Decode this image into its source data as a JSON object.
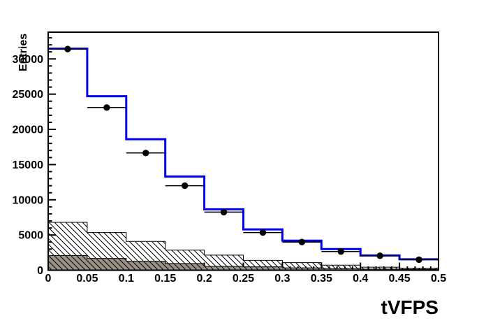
{
  "chart_data": {
    "type": "bar",
    "subtype": "overlaid-step-histograms",
    "title": "tVFPS",
    "xlabel": "tVFPS",
    "ylabel": "Entries",
    "x_range": [
      0,
      0.5
    ],
    "y_range": [
      0,
      33800
    ],
    "bin_width": 0.05,
    "bin_edges": [
      0,
      0.05,
      0.1,
      0.15,
      0.2,
      0.25,
      0.3,
      0.35,
      0.4,
      0.45,
      0.5
    ],
    "grid": false,
    "legend": "none",
    "x_ticks": [
      {
        "value": 0.0,
        "label": "0"
      },
      {
        "value": 0.05,
        "label": "0.05"
      },
      {
        "value": 0.1,
        "label": "0.1"
      },
      {
        "value": 0.15,
        "label": "0.15"
      },
      {
        "value": 0.2,
        "label": "0.2"
      },
      {
        "value": 0.25,
        "label": "0.25"
      },
      {
        "value": 0.3,
        "label": "0.3"
      },
      {
        "value": 0.35,
        "label": "0.35"
      },
      {
        "value": 0.4,
        "label": "0.4"
      },
      {
        "value": 0.45,
        "label": "0.45"
      },
      {
        "value": 0.5,
        "label": "0.5"
      }
    ],
    "y_ticks": [
      {
        "value": 0,
        "label": "0"
      },
      {
        "value": 5000,
        "label": "5000"
      },
      {
        "value": 10000,
        "label": "10000"
      },
      {
        "value": 15000,
        "label": "15000"
      },
      {
        "value": 20000,
        "label": "20000"
      },
      {
        "value": 25000,
        "label": "25000"
      },
      {
        "value": 30000,
        "label": "30000"
      }
    ],
    "x_minor_step": 0.01,
    "y_minor_step": 1000,
    "colors": {
      "total_line": "#0000ee",
      "gray_fill": "#9a9084",
      "outline": "#000000",
      "marker": "#000000",
      "frame": "#000000",
      "background": "#ffffff"
    },
    "series": [
      {
        "name": "total-histogram",
        "style": "step-line",
        "color": "#0000ee",
        "values": [
          31450,
          24700,
          18600,
          13300,
          8650,
          5800,
          4200,
          3000,
          2100,
          1550
        ]
      },
      {
        "name": "data-points",
        "style": "points-with-x-error-bars",
        "color": "#000000",
        "values": [
          31400,
          23100,
          16650,
          12000,
          8250,
          5350,
          4000,
          2650,
          2050,
          1500
        ]
      },
      {
        "name": "hatched-background",
        "style": "hatched-fill-histogram",
        "color": "#000000",
        "values": [
          6800,
          5350,
          4100,
          2850,
          2150,
          1400,
          1080,
          720,
          430,
          300
        ]
      },
      {
        "name": "gray-background",
        "style": "solid-fill-histogram",
        "color": "#9a9084",
        "values": [
          2100,
          1670,
          1290,
          950,
          550,
          490,
          330,
          230,
          160,
          140
        ]
      }
    ]
  }
}
